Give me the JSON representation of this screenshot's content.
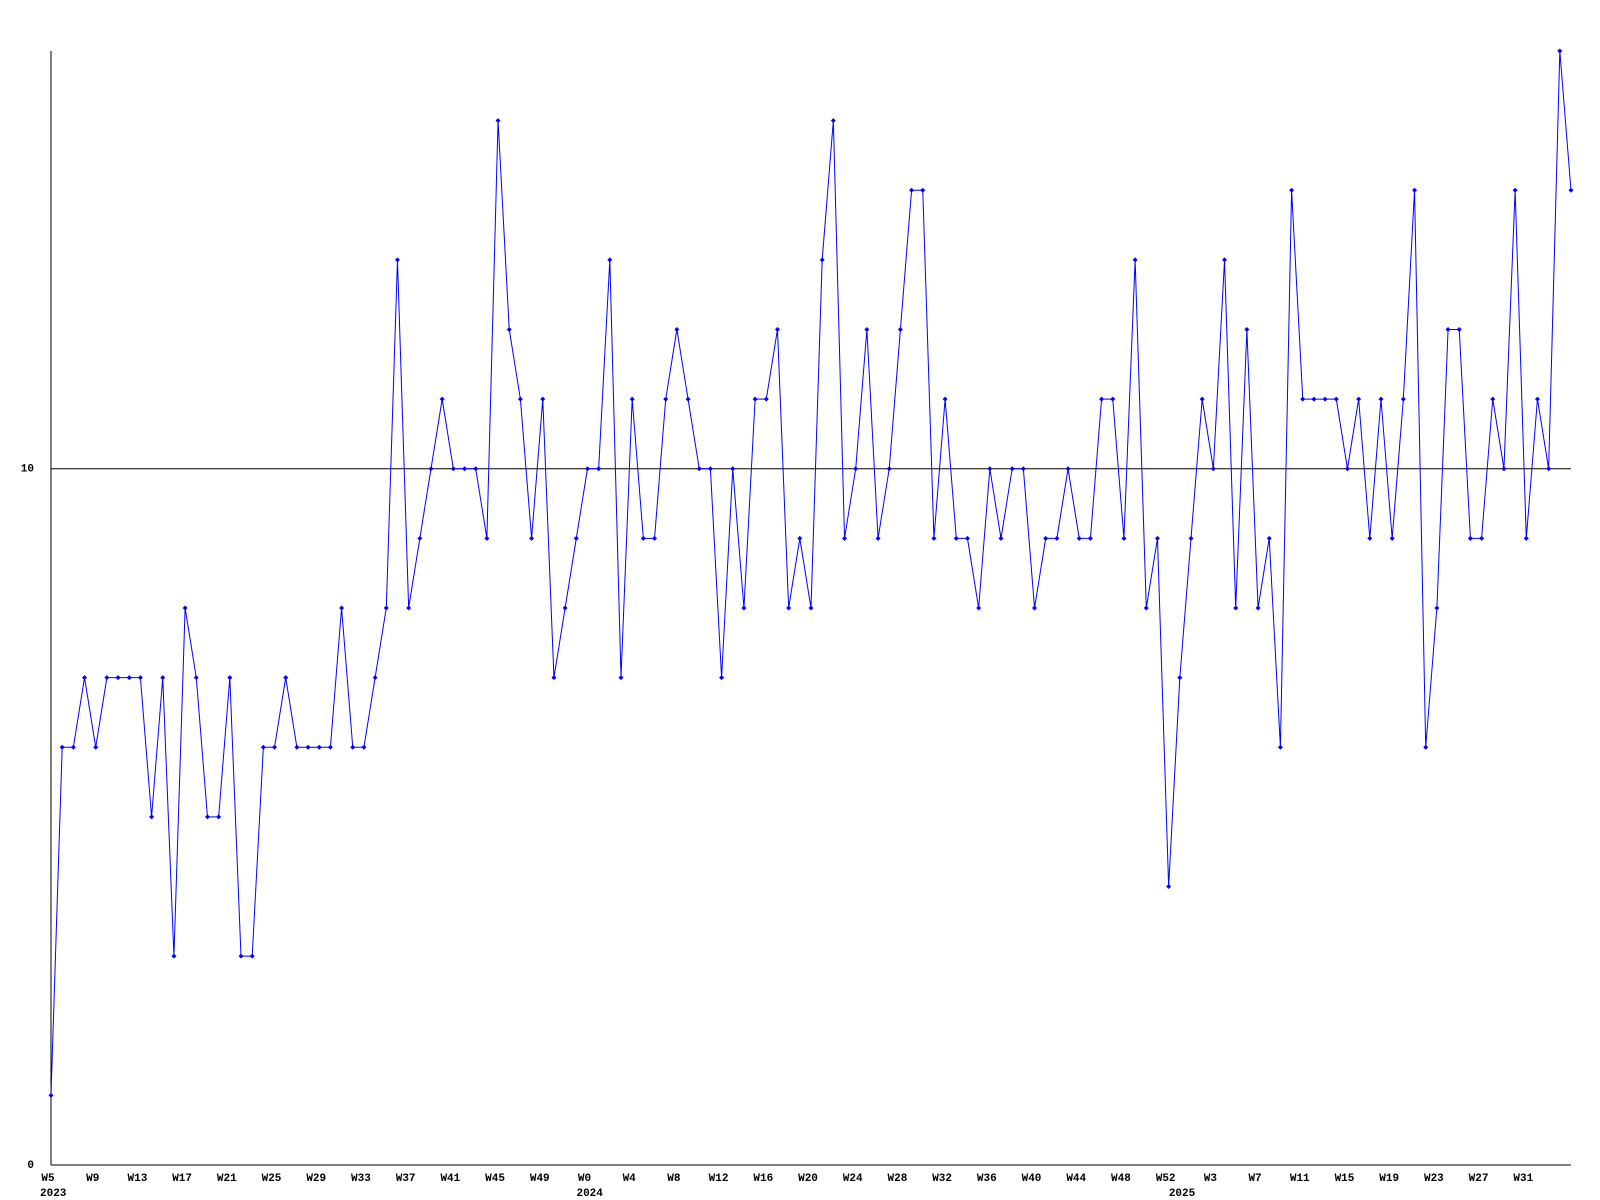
{
  "chart_data": {
    "type": "line",
    "categories": [
      "W5",
      null,
      null,
      null,
      "W9",
      null,
      null,
      null,
      "W13",
      null,
      null,
      null,
      "W17",
      null,
      null,
      null,
      "W21",
      null,
      null,
      null,
      "W25",
      null,
      null,
      null,
      "W29",
      null,
      null,
      null,
      "W33",
      null,
      null,
      null,
      "W37",
      null,
      null,
      null,
      "W41",
      null,
      null,
      null,
      "W45",
      null,
      null,
      null,
      "W49",
      null,
      null,
      null,
      "W0",
      null,
      null,
      null,
      "W4",
      null,
      null,
      null,
      "W8",
      null,
      null,
      null,
      "W12",
      null,
      null,
      null,
      "W16",
      null,
      null,
      null,
      "W20",
      null,
      null,
      null,
      "W24",
      null,
      null,
      null,
      "W28",
      null,
      null,
      null,
      "W32",
      null,
      null,
      null,
      "W36",
      null,
      null,
      null,
      "W40",
      null,
      null,
      null,
      "W44",
      null,
      null,
      null,
      "W48",
      null,
      null,
      null,
      "W52",
      null,
      null,
      null,
      "W3",
      null,
      null,
      null,
      "W7",
      null,
      null,
      null,
      "W11",
      null,
      null,
      null,
      "W15",
      null,
      null,
      null,
      "W19",
      null,
      null,
      null,
      "W23",
      null,
      null,
      null,
      "W27",
      null,
      null,
      null,
      "W31",
      null,
      null,
      null,
      null
    ],
    "years": [
      {
        "label": "2023",
        "category": 0
      },
      {
        "label": "2024",
        "category": 48
      },
      {
        "label": "2025",
        "category": 101
      }
    ],
    "series": [
      {
        "color": "#0000ff",
        "values": [
          1,
          6,
          6,
          7,
          6,
          7,
          7,
          7,
          7,
          5,
          7,
          3,
          8,
          7,
          5,
          5,
          7,
          3,
          3,
          6,
          6,
          7,
          6,
          6,
          6,
          6,
          8,
          6,
          6,
          7,
          8,
          13,
          8,
          9,
          10,
          11,
          10,
          10,
          10,
          9,
          15,
          12,
          11,
          9,
          11,
          7,
          8,
          9,
          10,
          10,
          13,
          7,
          11,
          9,
          9,
          11,
          12,
          11,
          10,
          10,
          7,
          10,
          8,
          11,
          11,
          12,
          8,
          9,
          8,
          13,
          15,
          9,
          10,
          12,
          9,
          10,
          12,
          14,
          14,
          9,
          11,
          9,
          9,
          8,
          10,
          9,
          10,
          10,
          8,
          9,
          9,
          10,
          9,
          9,
          11,
          11,
          9,
          13,
          8,
          9,
          4,
          7,
          9,
          11,
          10,
          13,
          8,
          12,
          8,
          9,
          6,
          14,
          11,
          11,
          11,
          11,
          10,
          11,
          9,
          11,
          9,
          11,
          14,
          6,
          8,
          12,
          12,
          9,
          9,
          11,
          10,
          14,
          9,
          11,
          10,
          16,
          14
        ]
      }
    ],
    "ylim": [
      0,
      16
    ],
    "yticks": [
      0,
      10
    ],
    "grid": true
  }
}
